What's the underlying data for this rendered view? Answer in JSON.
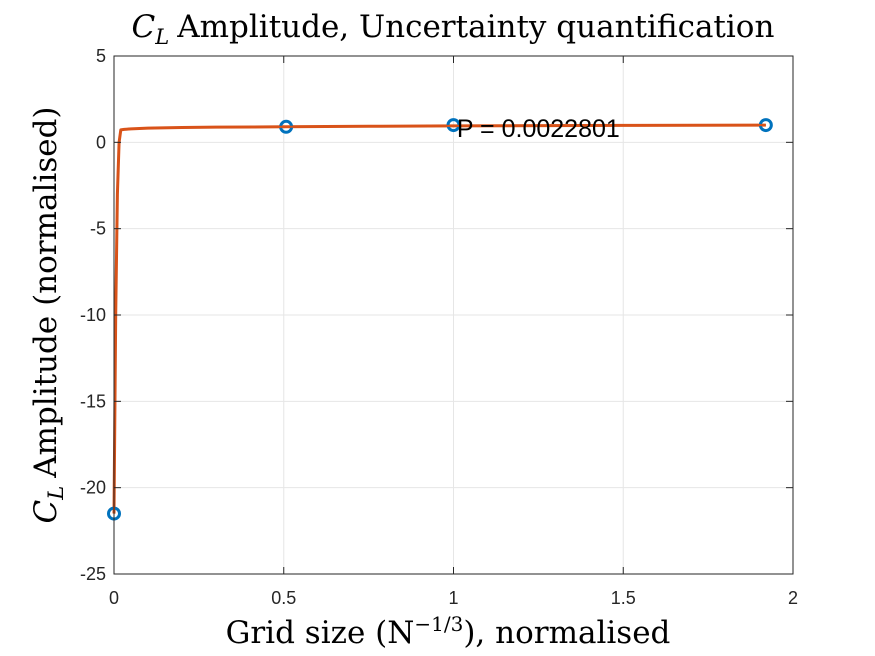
{
  "chart_data": {
    "type": "line",
    "title": {
      "symbol": "C",
      "subscript": "L",
      "text": "Amplitude, Uncertainty quantification"
    },
    "xlabel": {
      "prefix": "Grid size (N",
      "superscript": "−1/3",
      "suffix": "), normalised"
    },
    "ylabel": {
      "symbol": "C",
      "subscript": "L",
      "text": "Amplitude (normalised)"
    },
    "xlim": [
      0,
      2
    ],
    "ylim": [
      -25,
      5
    ],
    "xticks": [
      0,
      0.5,
      1,
      1.5,
      2
    ],
    "xtick_labels": [
      "0",
      "0.5",
      "1",
      "1.5",
      "2"
    ],
    "yticks": [
      5,
      0,
      -5,
      -10,
      -15,
      -20,
      -25
    ],
    "ytick_labels": [
      "5",
      "0",
      "-5",
      "-10",
      "-15",
      "-20",
      "-25"
    ],
    "grid": true,
    "series": [
      {
        "kind": "markers",
        "color": "#0072BD",
        "x": [
          0,
          0.507,
          1.0,
          1.92
        ],
        "y": [
          -21.5,
          0.9,
          1.0,
          1.0
        ]
      },
      {
        "kind": "line",
        "color": "#D95319",
        "x": [
          0,
          0.005,
          0.01,
          0.015,
          0.02,
          0.03,
          0.05,
          0.1,
          0.2,
          0.3,
          0.5,
          0.75,
          1.0,
          1.5,
          1.92
        ],
        "y": [
          -21.5,
          -10.0,
          -3.0,
          0.0,
          0.72,
          0.75,
          0.78,
          0.82,
          0.86,
          0.88,
          0.9,
          0.93,
          0.95,
          0.98,
          1.0
        ]
      }
    ],
    "annotation": {
      "text": "P = 0.0022801",
      "x": 1.01,
      "y": 0.9
    }
  }
}
